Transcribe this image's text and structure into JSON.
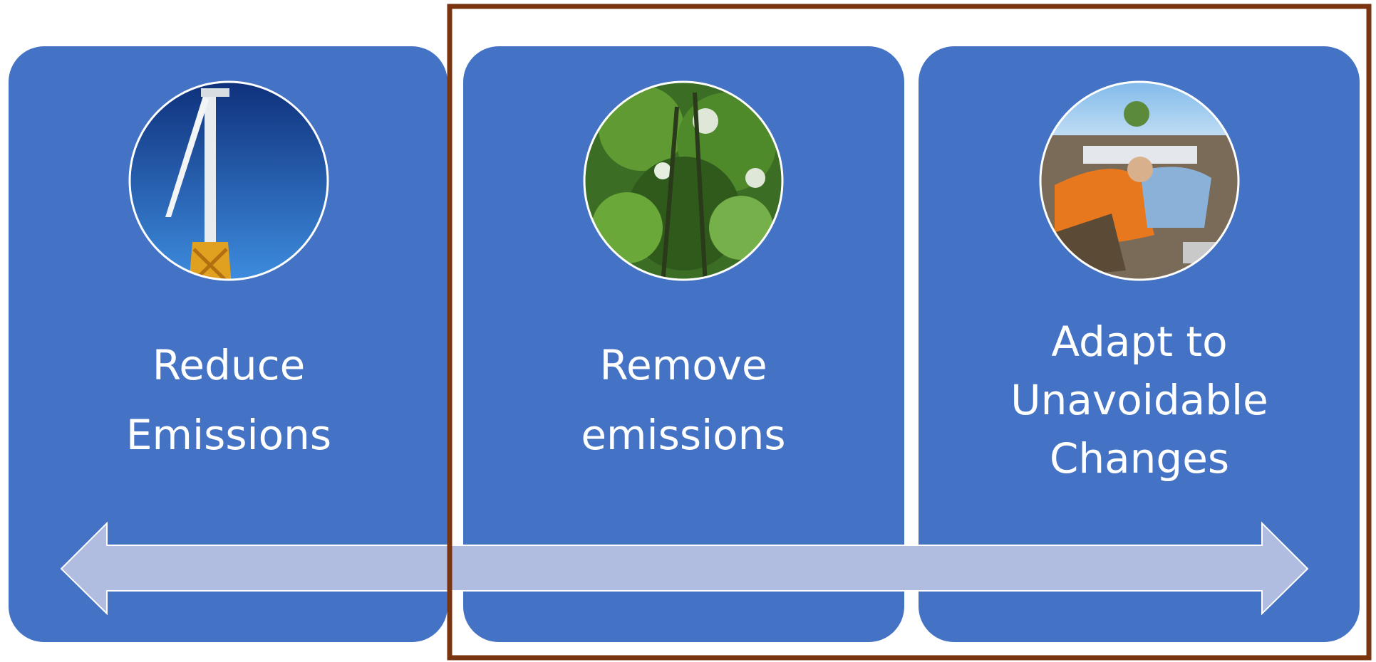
{
  "panels": [
    {
      "lines": [
        "Reduce",
        "Emissions"
      ]
    },
    {
      "lines": [
        "Remove",
        "emissions"
      ]
    },
    {
      "lines": [
        "Adapt to",
        "Unavoidable",
        "Changes"
      ]
    }
  ]
}
